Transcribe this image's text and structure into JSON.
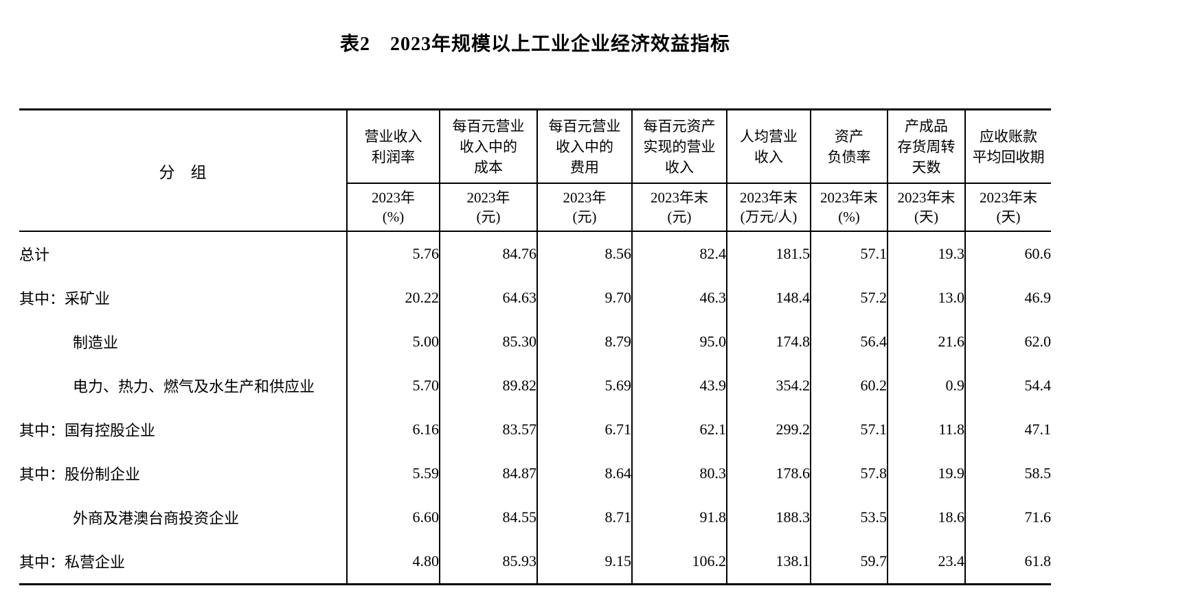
{
  "title": "表2　2023年规模以上工业企业经济效益指标",
  "palette": {
    "text": "#000000",
    "background": "#ffffff",
    "border": "#000000"
  },
  "table": {
    "group_header": "分　组",
    "columns": [
      {
        "lines": [
          "营业收入",
          "利润率"
        ],
        "period": "2023年",
        "unit": "(%)"
      },
      {
        "lines": [
          "每百元营业",
          "收入中的",
          "成本"
        ],
        "period": "2023年",
        "unit": "(元)"
      },
      {
        "lines": [
          "每百元营业",
          "收入中的",
          "费用"
        ],
        "period": "2023年",
        "unit": "(元)"
      },
      {
        "lines": [
          "每百元资产",
          "实现的营业",
          "收入"
        ],
        "period": "2023年末",
        "unit": "(元)"
      },
      {
        "lines": [
          "人均营业",
          "收入"
        ],
        "period": "2023年末",
        "unit": "(万元/人)"
      },
      {
        "lines": [
          "资产",
          "负债率"
        ],
        "period": "2023年末",
        "unit": "(%)"
      },
      {
        "lines": [
          "产成品",
          "存货周转",
          "天数"
        ],
        "period": "2023年末",
        "unit": "(天)"
      },
      {
        "lines": [
          "应收账款",
          "平均回收期"
        ],
        "period": "2023年末",
        "unit": "(天)"
      }
    ],
    "rows": [
      {
        "label": "总计",
        "indent": 0,
        "values": [
          "5.76",
          "84.76",
          "8.56",
          "82.4",
          "181.5",
          "57.1",
          "19.3",
          "60.6"
        ]
      },
      {
        "label": "其中：采矿业",
        "indent": 0,
        "values": [
          "20.22",
          "64.63",
          "9.70",
          "46.3",
          "148.4",
          "57.2",
          "13.0",
          "46.9"
        ]
      },
      {
        "label": "制造业",
        "indent": 1,
        "values": [
          "5.00",
          "85.30",
          "8.79",
          "95.0",
          "174.8",
          "56.4",
          "21.6",
          "62.0"
        ]
      },
      {
        "label": "电力、热力、燃气及水生产和供应业",
        "indent": 1,
        "values": [
          "5.70",
          "89.82",
          "5.69",
          "43.9",
          "354.2",
          "60.2",
          "0.9",
          "54.4"
        ]
      },
      {
        "label": "其中：国有控股企业",
        "indent": 0,
        "values": [
          "6.16",
          "83.57",
          "6.71",
          "62.1",
          "299.2",
          "57.1",
          "11.8",
          "47.1"
        ]
      },
      {
        "label": "其中：股份制企业",
        "indent": 0,
        "values": [
          "5.59",
          "84.87",
          "8.64",
          "80.3",
          "178.6",
          "57.8",
          "19.9",
          "58.5"
        ]
      },
      {
        "label": "外商及港澳台商投资企业",
        "indent": 1,
        "values": [
          "6.60",
          "84.55",
          "8.71",
          "91.8",
          "188.3",
          "53.5",
          "18.6",
          "71.6"
        ]
      },
      {
        "label": "其中：私营企业",
        "indent": 0,
        "values": [
          "4.80",
          "85.93",
          "9.15",
          "106.2",
          "138.1",
          "59.7",
          "23.4",
          "61.8"
        ]
      }
    ]
  }
}
